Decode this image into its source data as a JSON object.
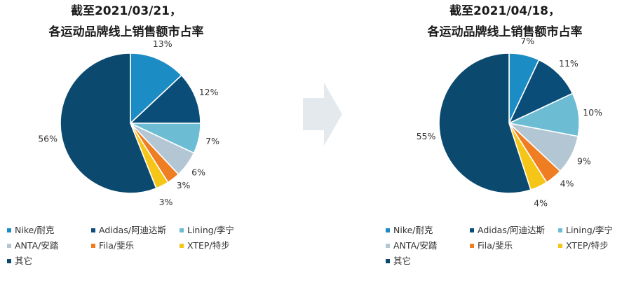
{
  "chart_data": [
    {
      "type": "pie",
      "title": [
        "截至2021/03/21，",
        "各运动品牌线上销售额市占率"
      ],
      "categories": [
        "Nike/耐克",
        "Adidas/阿迪达斯",
        "Lining/李宁",
        "ANTA/安踏",
        "Fila/斐乐",
        "XTEP/特步",
        "其它"
      ],
      "values": [
        13,
        12,
        7,
        6,
        3,
        3,
        56
      ],
      "data_labels": [
        "13%",
        "12%",
        "7%",
        "6%",
        "3%",
        "3%",
        "56%"
      ],
      "colors": [
        "#1b8cc4",
        "#0a4d78",
        "#6cbcd4",
        "#b3c6d3",
        "#ef7d22",
        "#f5c518",
        "#0b4a6e"
      ],
      "legend_position": "bottom"
    },
    {
      "type": "pie",
      "title": [
        "截至2021/04/18，",
        "各运动品牌线上销售额市占率"
      ],
      "categories": [
        "Nike/耐克",
        "Adidas/阿迪达斯",
        "Lining/李宁",
        "ANTA/安踏",
        "Fila/斐乐",
        "XTEP/特步",
        "其它"
      ],
      "values": [
        7,
        11,
        10,
        9,
        4,
        4,
        55
      ],
      "data_labels": [
        "7%",
        "11%",
        "10%",
        "9%",
        "4%",
        "4%",
        "55%"
      ],
      "colors": [
        "#1b8cc4",
        "#0a4d78",
        "#6cbcd4",
        "#b3c6d3",
        "#ef7d22",
        "#f5c518",
        "#0b4a6e"
      ],
      "legend_position": "bottom"
    }
  ]
}
